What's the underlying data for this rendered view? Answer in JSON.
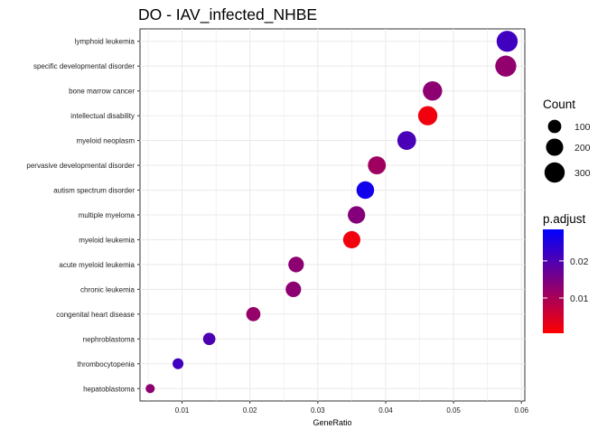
{
  "chart_data": {
    "type": "scatter",
    "title": "DO - IAV_infected_NHBE",
    "xlabel": "GeneRatio",
    "ylabel": "",
    "xlim": [
      0.0038,
      0.0605
    ],
    "x_ticks": [
      0.01,
      0.02,
      0.03,
      0.04,
      0.05,
      0.06
    ],
    "x_tick_labels": [
      "0.01",
      "0.02",
      "0.03",
      "0.04",
      "0.05",
      "0.06"
    ],
    "grid": true,
    "categories": [
      "lymphoid leukemia",
      "specific developmental disorder",
      "bone marrow cancer",
      "intellectual disability",
      "myeloid neoplasm",
      "pervasive developmental disorder",
      "autism spectrum disorder",
      "multiple myeloma",
      "myeloid leukemia",
      "acute myeloid leukemia",
      "chronic leukemia",
      "congenital heart disease",
      "nephroblastoma",
      "thrombocytopenia",
      "hepatoblastoma"
    ],
    "points": [
      {
        "term": "lymphoid leukemia",
        "gene_ratio": 0.0579,
        "count": 330,
        "p_adjust": 0.0215
      },
      {
        "term": "specific developmental disorder",
        "gene_ratio": 0.0577,
        "count": 330,
        "p_adjust": 0.0125
      },
      {
        "term": "bone marrow cancer",
        "gene_ratio": 0.0469,
        "count": 268,
        "p_adjust": 0.013
      },
      {
        "term": "intellectual disability",
        "gene_ratio": 0.0462,
        "count": 264,
        "p_adjust": 0.002
      },
      {
        "term": "myeloid neoplasm",
        "gene_ratio": 0.0431,
        "count": 247,
        "p_adjust": 0.0205
      },
      {
        "term": "pervasive developmental disorder",
        "gene_ratio": 0.0387,
        "count": 221,
        "p_adjust": 0.011
      },
      {
        "term": "autism spectrum disorder",
        "gene_ratio": 0.037,
        "count": 211,
        "p_adjust": 0.0265
      },
      {
        "term": "multiple myeloma",
        "gene_ratio": 0.0357,
        "count": 204,
        "p_adjust": 0.014
      },
      {
        "term": "myeloid leukemia",
        "gene_ratio": 0.035,
        "count": 200,
        "p_adjust": 0.002
      },
      {
        "term": "acute myeloid leukemia",
        "gene_ratio": 0.0268,
        "count": 153,
        "p_adjust": 0.013
      },
      {
        "term": "chronic leukemia",
        "gene_ratio": 0.0264,
        "count": 151,
        "p_adjust": 0.013
      },
      {
        "term": "congenital heart disease",
        "gene_ratio": 0.0205,
        "count": 117,
        "p_adjust": 0.012
      },
      {
        "term": "nephroblastoma",
        "gene_ratio": 0.014,
        "count": 80,
        "p_adjust": 0.02
      },
      {
        "term": "thrombocytopenia",
        "gene_ratio": 0.0094,
        "count": 54,
        "p_adjust": 0.0215
      },
      {
        "term": "hepatoblastoma",
        "gene_ratio": 0.0053,
        "count": 30,
        "p_adjust": 0.013
      }
    ],
    "legend": {
      "placement": "right",
      "size_title": "Count",
      "size_breaks": [
        100,
        200,
        300
      ],
      "size_labels": [
        "100",
        "200",
        "300"
      ],
      "color_title": "p.adjust",
      "color_breaks": [
        0.02,
        0.01
      ],
      "color_labels": [
        "0.02",
        "0.01"
      ],
      "color_range": [
        0.0005,
        0.0285
      ],
      "color_low": "#ff0000",
      "color_high": "#0000ff"
    },
    "panel_background": "#ffffff",
    "grid_color": "#ebebeb"
  }
}
